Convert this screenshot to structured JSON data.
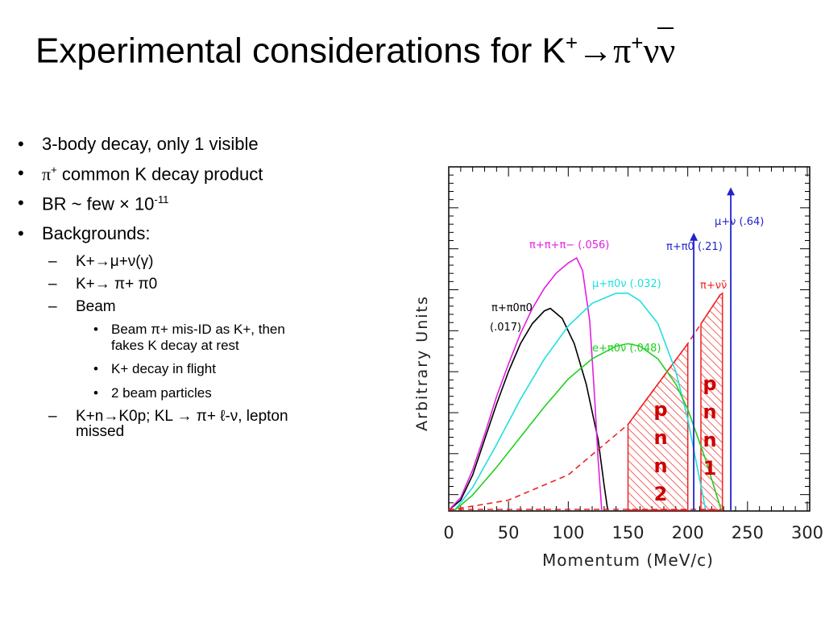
{
  "title": {
    "prefix": "Experimental considerations for K",
    "sup_plus": "+",
    "arrow": "→",
    "pi": "π",
    "nunu": "νν"
  },
  "bullets": {
    "b1": "3-body decay, only 1 visible",
    "b2_pi": "π",
    "b2_plus": "+",
    "b2_text": " common K decay product",
    "b3_text": "BR ~ few × 10",
    "b3_exp": "-11",
    "b4": "Backgrounds:",
    "sub1": "K+→μ+ν(γ)",
    "sub2": "K+→ π+ π0",
    "sub3": "Beam",
    "subsub1_line1": "Beam π+ mis-ID as K+, then",
    "subsub1_line2": "fakes K decay at rest",
    "subsub2": "K+ decay in flight",
    "subsub3": "2 beam particles",
    "sub4_line1": "K+n→K0p; KL → π+ ℓ-ν, lepton",
    "sub4_line2": "missed"
  },
  "colors": {
    "pipipi": "#e020e0",
    "pi0munu": "#20e0e0",
    "pi0enu": "#20d020",
    "pi0pi0": "#000000",
    "pinunu": "#ee2222",
    "arrows": "#2222cc",
    "signal_text": "#cc0000"
  },
  "chart_data": {
    "type": "line",
    "xlabel": "Momentum (MeV/c)",
    "ylabel": "Arbitrary Units",
    "xlim": [
      0,
      300
    ],
    "ylim": [
      0,
      1
    ],
    "xticks": [
      0,
      50,
      100,
      150,
      200,
      250,
      300
    ],
    "series": [
      {
        "name": "π+π0π0 (.017)",
        "label_line1": "π+π0π0",
        "label_line2": "(.017)",
        "color": "#000000",
        "x": [
          0,
          10,
          20,
          30,
          40,
          50,
          60,
          70,
          80,
          85,
          95,
          105,
          115,
          125,
          130,
          133
        ],
        "y": [
          0,
          0.04,
          0.14,
          0.28,
          0.42,
          0.55,
          0.66,
          0.74,
          0.79,
          0.8,
          0.76,
          0.66,
          0.5,
          0.28,
          0.1,
          0
        ]
      },
      {
        "name": "π+π+π- (.056)",
        "label_line1": "π+π+π−  (.056)",
        "color": "#e020e0",
        "x": [
          0,
          10,
          20,
          30,
          40,
          50,
          60,
          70,
          80,
          90,
          100,
          107,
          112,
          118,
          122,
          125,
          128
        ],
        "y": [
          0,
          0.05,
          0.16,
          0.3,
          0.45,
          0.58,
          0.7,
          0.8,
          0.88,
          0.94,
          0.98,
          1.0,
          0.95,
          0.75,
          0.45,
          0.2,
          0
        ]
      },
      {
        "name": "μ+π0ν (.032)",
        "label_line1": "μ+π0ν  (.032)",
        "color": "#20e0e0",
        "x": [
          5,
          20,
          40,
          60,
          80,
          100,
          120,
          140,
          150,
          160,
          175,
          190,
          200,
          210,
          215
        ],
        "y": [
          0,
          0.09,
          0.26,
          0.44,
          0.6,
          0.73,
          0.82,
          0.86,
          0.86,
          0.83,
          0.74,
          0.55,
          0.36,
          0.12,
          0
        ]
      },
      {
        "name": "e+π0ν (.048)",
        "label_line1": "e+π0ν  (.048)",
        "color": "#20d020",
        "x": [
          5,
          20,
          40,
          60,
          80,
          100,
          120,
          140,
          150,
          160,
          175,
          190,
          200,
          215,
          228
        ],
        "y": [
          0,
          0.06,
          0.17,
          0.29,
          0.41,
          0.52,
          0.6,
          0.65,
          0.66,
          0.65,
          0.6,
          0.5,
          0.4,
          0.2,
          0
        ]
      },
      {
        "name": "π+νν̄",
        "label_line1": "π+νν̄",
        "color": "#ee2222",
        "dashed": true,
        "x": [
          0,
          50,
          100,
          150,
          200,
          228
        ],
        "y": [
          0,
          0.04,
          0.14,
          0.34,
          0.66,
          0.86
        ]
      }
    ],
    "arrows": [
      {
        "name": "π+π0 (.21)",
        "label": "π+π0  (.21)",
        "x": 205,
        "y": 1.1,
        "color": "#2222cc"
      },
      {
        "name": "μ+ν (.64)",
        "label": "μ+ν  (.64)",
        "x": 236,
        "y": 1.28,
        "color": "#2222cc"
      }
    ],
    "regions": [
      {
        "name": "pnn2",
        "label": "pnn2",
        "x_start": 150,
        "x_end": 200
      },
      {
        "name": "pnn1",
        "label": "pnn1",
        "x_start": 211,
        "x_end": 229
      }
    ]
  }
}
